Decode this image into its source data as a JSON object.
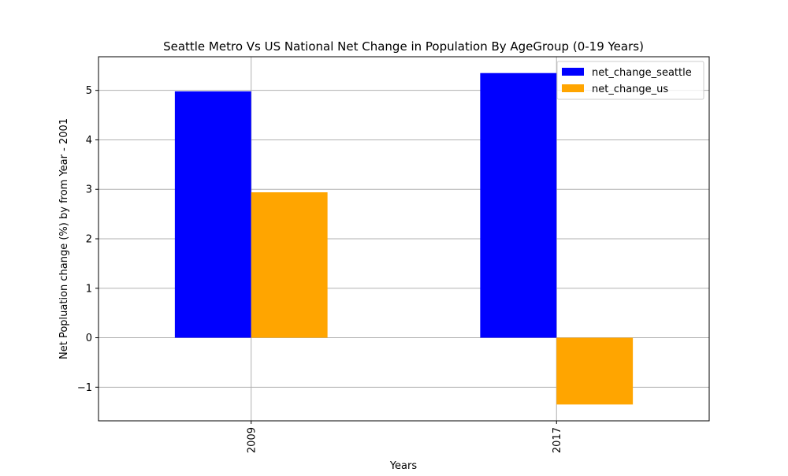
{
  "chart_data": {
    "type": "bar",
    "title": "Seattle Metro Vs US National Net Change in Population By AgeGroup (0-19 Years)",
    "xlabel": "Years",
    "ylabel": "Net Popluation change (%) by from Year - 2001",
    "categories": [
      "2009",
      "2017"
    ],
    "series": [
      {
        "name": "net_change_seattle",
        "values": [
          4.98,
          5.35
        ],
        "color": "#0000ff"
      },
      {
        "name": "net_change_us",
        "values": [
          2.94,
          -1.35
        ],
        "color": "#ffa500"
      }
    ],
    "ylim": [
      -1.68,
      5.68
    ],
    "yticks": [
      -1,
      0,
      1,
      2,
      3,
      4,
      5
    ],
    "ytick_labels": [
      "−1",
      "0",
      "1",
      "2",
      "3",
      "4",
      "5"
    ],
    "grid": true,
    "legend_position": "top-right",
    "x_tick_rotation": "vertical"
  }
}
